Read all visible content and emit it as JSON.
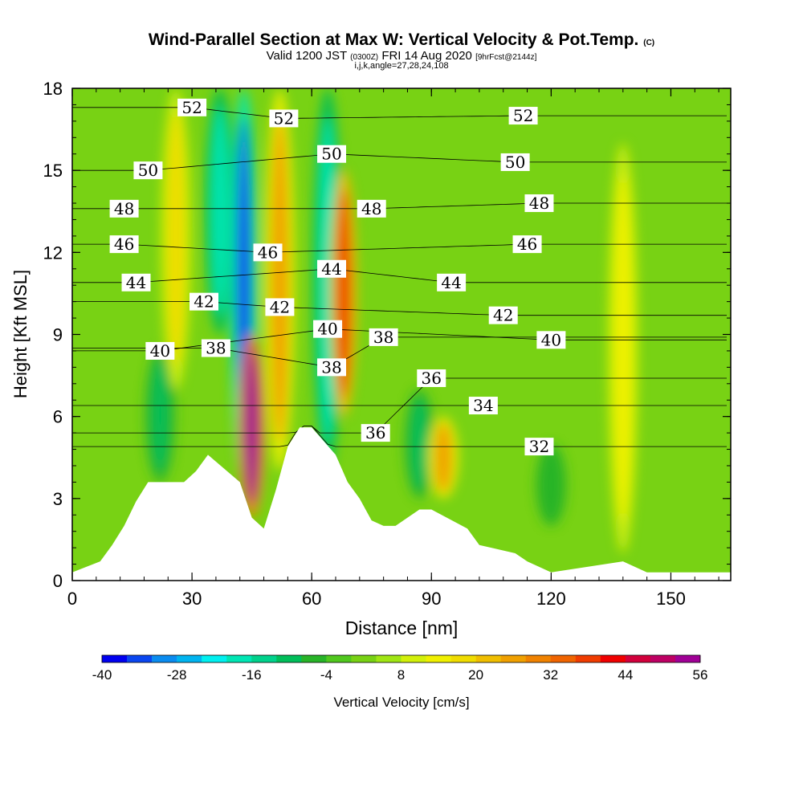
{
  "header": {
    "title": "Wind-Parallel Section at Max W: Vertical Velocity & Pot.Temp.",
    "copyright": "(C)",
    "valid_prefix": "Valid 1200 JST",
    "valid_z": "(0300Z)",
    "valid_date": "FRI 14 Aug 2020",
    "forecast": "[9hrFcst@2144z]",
    "indices": "i,j,k,angle=27,28,24,108"
  },
  "chart_data": {
    "type": "heatmap",
    "xlabel": "Distance [nm]",
    "ylabel": "Height [Kft MSL]",
    "xlim": [
      0,
      165
    ],
    "ylim": [
      0,
      18
    ],
    "x_ticks": [
      "0",
      "30",
      "60",
      "90",
      "120",
      "150"
    ],
    "y_ticks": [
      "0",
      "3",
      "6",
      "9",
      "12",
      "15",
      "18"
    ],
    "colorbar": {
      "label": "Vertical Velocity [cm/s]",
      "tick_labels": [
        "-40",
        "-28",
        "-16",
        "-4",
        "8",
        "20",
        "32",
        "44",
        "56"
      ],
      "min": -40,
      "max": 56,
      "step": 4,
      "colors": [
        "#0000f0",
        "#0a46f0",
        "#0a8cf0",
        "#00b4f0",
        "#00f0f0",
        "#00e6b4",
        "#00d28c",
        "#00be5a",
        "#28b428",
        "#50c81e",
        "#78d214",
        "#a0e614",
        "#d2f00a",
        "#f0f000",
        "#f0dc00",
        "#f0be00",
        "#f0a000",
        "#f08200",
        "#f06400",
        "#f03c00",
        "#f00000",
        "#d2003c",
        "#be0064",
        "#a00096"
      ]
    },
    "vertical_velocity_features": [
      {
        "x": 22,
        "y_range": [
          3.6,
          8.5
        ],
        "value": -12,
        "kind": "downdraft"
      },
      {
        "x": 26,
        "y_range": [
          7,
          18
        ],
        "value": 16,
        "kind": "updraft band"
      },
      {
        "x": 37,
        "y_range": [
          9,
          18
        ],
        "value": -20,
        "kind": "downdraft band"
      },
      {
        "x": 43,
        "y_range": [
          3.6,
          18
        ],
        "value": -36,
        "kind": "downdraft band"
      },
      {
        "x": 45,
        "y_range": [
          2.3,
          9
        ],
        "value": 52,
        "kind": "updraft core"
      },
      {
        "x": 52,
        "y_range": [
          4,
          18
        ],
        "value": 24,
        "kind": "updraft band"
      },
      {
        "x": 64,
        "y_range": [
          4,
          18
        ],
        "value": -20,
        "kind": "downdraft band"
      },
      {
        "x": 68,
        "y_range": [
          6,
          15
        ],
        "value": 36,
        "kind": "updraft band"
      },
      {
        "x": 87,
        "y_range": [
          3,
          7
        ],
        "value": -12,
        "kind": "downdraft"
      },
      {
        "x": 93,
        "y_range": [
          3,
          6
        ],
        "value": 24,
        "kind": "updraft"
      },
      {
        "x": 120,
        "y_range": [
          2,
          5
        ],
        "value": -8,
        "kind": "downdraft"
      },
      {
        "x": 138,
        "y_range": [
          1,
          16
        ],
        "value": 12,
        "kind": "updraft band"
      }
    ],
    "pot_temp_contour_labels": [
      {
        "value": "52",
        "x": 30,
        "y": 17.3
      },
      {
        "value": "52",
        "x": 53,
        "y": 16.9
      },
      {
        "value": "52",
        "x": 113,
        "y": 17.0
      },
      {
        "value": "50",
        "x": 19,
        "y": 15.0
      },
      {
        "value": "50",
        "x": 65,
        "y": 15.6
      },
      {
        "value": "50",
        "x": 111,
        "y": 15.3
      },
      {
        "value": "48",
        "x": 13,
        "y": 13.6
      },
      {
        "value": "48",
        "x": 75,
        "y": 13.6
      },
      {
        "value": "48",
        "x": 117,
        "y": 13.8
      },
      {
        "value": "46",
        "x": 13,
        "y": 12.3
      },
      {
        "value": "46",
        "x": 49,
        "y": 12.0
      },
      {
        "value": "46",
        "x": 114,
        "y": 12.3
      },
      {
        "value": "44",
        "x": 16,
        "y": 10.9
      },
      {
        "value": "44",
        "x": 65,
        "y": 11.4
      },
      {
        "value": "44",
        "x": 95,
        "y": 10.9
      },
      {
        "value": "42",
        "x": 33,
        "y": 10.2
      },
      {
        "value": "42",
        "x": 52,
        "y": 10.0
      },
      {
        "value": "42",
        "x": 108,
        "y": 9.7
      },
      {
        "value": "40",
        "x": 22,
        "y": 8.4
      },
      {
        "value": "40",
        "x": 64,
        "y": 9.2
      },
      {
        "value": "40",
        "x": 120,
        "y": 8.8
      },
      {
        "value": "38",
        "x": 36,
        "y": 8.5
      },
      {
        "value": "38",
        "x": 65,
        "y": 7.8
      },
      {
        "value": "38",
        "x": 78,
        "y": 8.9
      },
      {
        "value": "36",
        "x": 90,
        "y": 7.4
      },
      {
        "value": "36",
        "x": 76,
        "y": 5.4
      },
      {
        "value": "34",
        "x": 103,
        "y": 6.4
      },
      {
        "value": "32",
        "x": 117,
        "y": 4.9
      }
    ],
    "terrain_profile": {
      "x": [
        0,
        7,
        10,
        13,
        16,
        19,
        28,
        31,
        34,
        42,
        45,
        48,
        51,
        54,
        57,
        60,
        66,
        69,
        72,
        75,
        78,
        81,
        87,
        90,
        99,
        102,
        105,
        111,
        114,
        120,
        138,
        144,
        150,
        165
      ],
      "height": [
        0.3,
        0.7,
        1.3,
        2.0,
        2.9,
        3.6,
        3.6,
        4.0,
        4.6,
        3.6,
        2.3,
        1.9,
        3.3,
        4.9,
        5.6,
        5.6,
        4.6,
        3.6,
        3.0,
        2.2,
        2.0,
        2.0,
        2.6,
        2.6,
        1.9,
        1.3,
        1.2,
        1.0,
        0.7,
        0.3,
        0.7,
        0.3,
        0.3,
        0.3
      ]
    }
  }
}
